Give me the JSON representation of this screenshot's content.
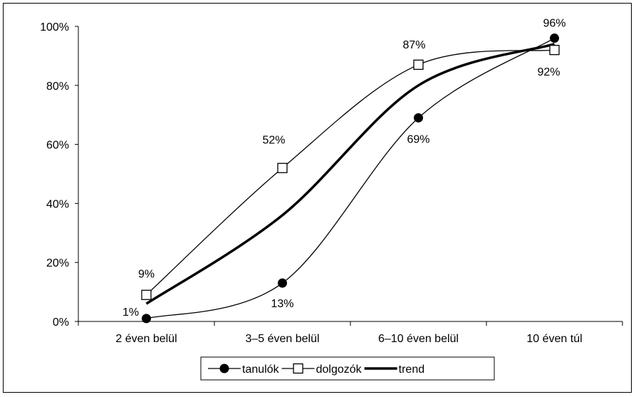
{
  "chart_data": {
    "type": "line",
    "categories": [
      "2 éven belül",
      "3–5 éven belül",
      "6–10 éven belül",
      "10 éven túl"
    ],
    "y_ticks": [
      "0%",
      "20%",
      "40%",
      "60%",
      "80%",
      "100%"
    ],
    "ylim": [
      0,
      100
    ],
    "series": [
      {
        "name": "tanulók",
        "values": [
          1,
          13,
          69,
          96
        ],
        "labels": [
          "1%",
          "13%",
          "69%",
          "96%"
        ],
        "marker": "filled-circle",
        "color": "#000000"
      },
      {
        "name": "dolgozók",
        "values": [
          9,
          52,
          87,
          92
        ],
        "labels": [
          "9%",
          "52%",
          "87%",
          "92%"
        ],
        "marker": "open-square",
        "color": "#000000"
      },
      {
        "name": "trend",
        "values": [
          6,
          36,
          80,
          94
        ],
        "marker": "none",
        "color": "#000000",
        "bold": true
      }
    ],
    "legend_position": "bottom",
    "grid": false
  }
}
